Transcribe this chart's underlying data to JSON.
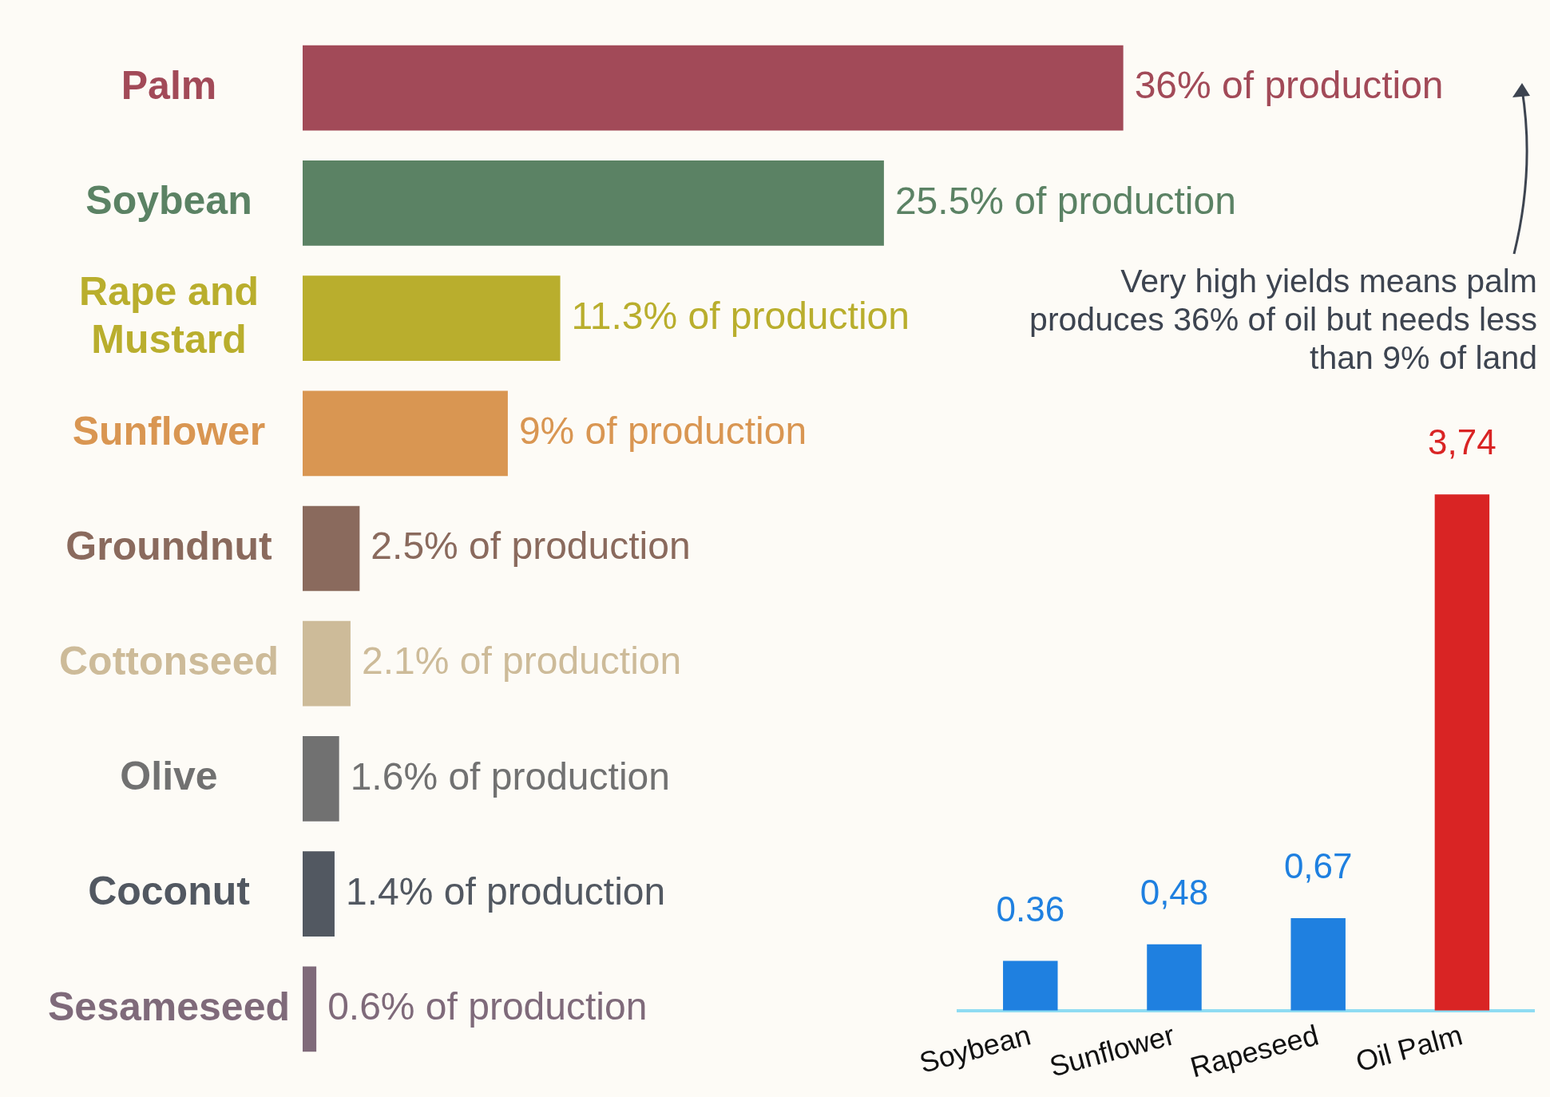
{
  "chart_data": [
    {
      "type": "bar",
      "orientation": "horizontal",
      "categories": [
        "Palm",
        "Soybean",
        "Rape and Mustard",
        "Sunflower",
        "Groundnut",
        "Cottonseed",
        "Olive",
        "Coconut",
        "Sesameseed"
      ],
      "values": [
        36,
        25.5,
        11.3,
        9,
        2.5,
        2.1,
        1.6,
        1.4,
        0.6
      ],
      "colors": [
        "#a24a58",
        "#5b8264",
        "#b9ae2d",
        "#d99652",
        "#8a6a5d",
        "#cdbb99",
        "#717171",
        "#525861",
        "#7f6a7a"
      ],
      "value_labels": [
        "36% of production",
        "25.5% of production",
        "11.3% of production",
        "9% of production",
        "2.5% of production",
        "2.1% of production",
        "1.6% of production",
        "1.4% of production",
        "0.6% of production"
      ],
      "annotations": [
        "Very high yields means palm produces 36% of oil but needs less than 9% of land"
      ]
    },
    {
      "type": "bar",
      "categories": [
        "Soybean",
        "Sunflower",
        "Rapeseed",
        "Oil Palm"
      ],
      "values": [
        0.36,
        0.48,
        0.67,
        3.74
      ],
      "colors": [
        "#1f80e0",
        "#1f80e0",
        "#1f80e0",
        "#d92424"
      ],
      "value_labels": [
        "0.36",
        "0,48",
        "0,67",
        "3,74"
      ]
    }
  ]
}
